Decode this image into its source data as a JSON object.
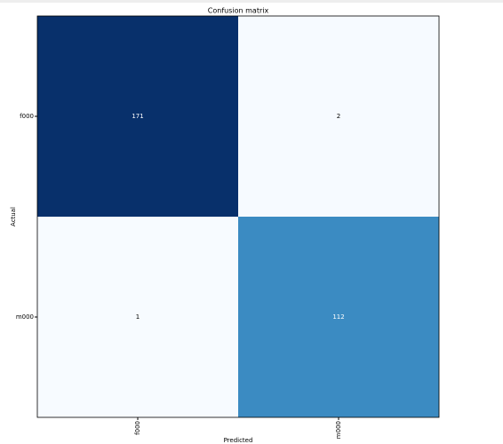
{
  "chart_data": {
    "type": "heatmap",
    "title": "Confusion matrix",
    "x_label": "Predicted",
    "y_label": "Actual",
    "x_categories": [
      "f000",
      "m000"
    ],
    "y_categories": [
      "f000",
      "m000"
    ],
    "values": [
      [
        171,
        2
      ],
      [
        1,
        112
      ]
    ],
    "colormap": "Blues"
  }
}
